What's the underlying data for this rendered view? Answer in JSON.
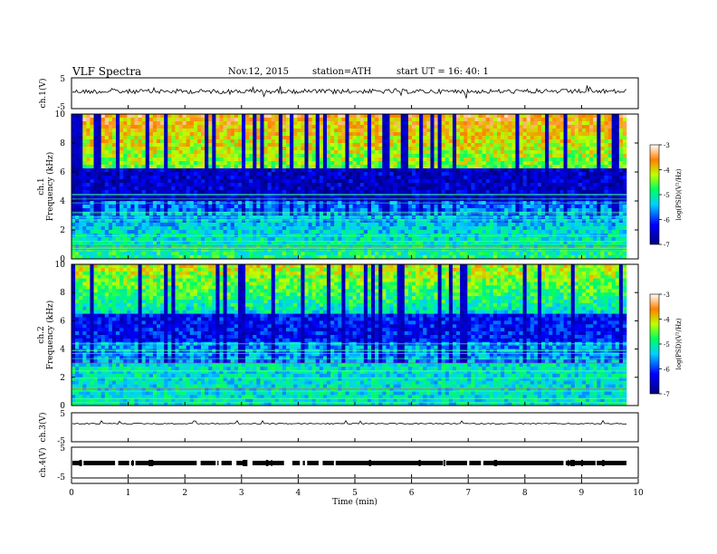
{
  "header": {
    "title": "VLF  Spectra",
    "date": "Nov.12, 2015",
    "station": "station=ATH",
    "start_ut": "start  UT  =    16: 40: 1"
  },
  "colors": {
    "background": "#ffffff",
    "axis": "#000000",
    "spectrogram_low": "#000080",
    "spectrogram_high": "#ff0000"
  },
  "chart_data": [
    {
      "type": "line",
      "panel": "ch1",
      "ylabel": "ch.1(V)",
      "ylim": [
        -5,
        5
      ],
      "yticks": [
        "5",
        "-5"
      ],
      "xlim": [
        0,
        10
      ],
      "series": [
        {
          "values": "noisy trace around 0 V"
        }
      ]
    },
    {
      "type": "heatmap",
      "panel": "ch1-spectrogram",
      "ylabel": "ch.1",
      "ylabel2": "Frequency  (kHz)",
      "ylim": [
        0,
        10
      ],
      "yticks": [
        "0",
        "2",
        "4",
        "6",
        "8",
        "10"
      ],
      "xlim": [
        0,
        10
      ],
      "colorbar": {
        "label": "log(PSD)(V²/Hz)",
        "range": [
          -7,
          -3
        ],
        "ticks": [
          "-3",
          "-4",
          "-5",
          "-6",
          "-7"
        ]
      }
    },
    {
      "type": "heatmap",
      "panel": "ch2-spectrogram",
      "ylabel": "ch.2",
      "ylabel2": "Frequency  (kHz)",
      "ylim": [
        0,
        10
      ],
      "yticks": [
        "0",
        "2",
        "4",
        "6",
        "8",
        "10"
      ],
      "xlim": [
        0,
        10
      ],
      "colorbar": {
        "label": "log(PSD)(V²/Hz)",
        "range": [
          -7,
          -3
        ],
        "ticks": [
          "-3",
          "-4",
          "-5",
          "-6",
          "-7"
        ]
      }
    },
    {
      "type": "line",
      "panel": "ch3",
      "ylabel": "ch.3(V)",
      "ylim": [
        -5,
        5
      ],
      "yticks": [
        "5",
        "-5"
      ],
      "xlim": [
        0,
        10
      ]
    },
    {
      "type": "line",
      "panel": "ch4",
      "ylabel": "ch.4(V)",
      "ylim": [
        -5,
        5
      ],
      "yticks": [
        "5",
        "-5"
      ],
      "xlim": [
        0,
        10
      ]
    },
    {
      "type": "axis",
      "xlabel": "Time  (min)",
      "xticks": [
        "0",
        "1",
        "2",
        "3",
        "4",
        "5",
        "6",
        "7",
        "8",
        "9",
        "10"
      ]
    }
  ]
}
